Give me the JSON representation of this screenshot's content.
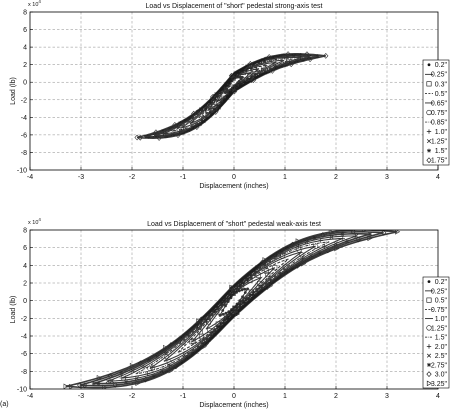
{
  "figure_label": "(a)",
  "chart_data": [
    {
      "type": "line",
      "title": "Load vs Displacement of \"short\" pedestal strong-axis test",
      "xlabel": "Displacement (inches)",
      "ylabel": "Load (lb)",
      "y_exponent_label": "x 10",
      "y_exponent_power": "4",
      "xlim": [
        -4,
        4
      ],
      "ylim": [
        -10,
        8
      ],
      "xticks": [
        "-4",
        "-3",
        "-2",
        "-1",
        "0",
        "1",
        "2",
        "3",
        "4"
      ],
      "yticks": [
        "-10",
        "-8",
        "-6",
        "-4",
        "-2",
        "0",
        "2",
        "4",
        "6",
        "8"
      ],
      "grid": true,
      "legend_position": "right",
      "series": [
        {
          "name": "0.2\"",
          "marker": "dot",
          "amp": 0.2
        },
        {
          "name": "0.25\"",
          "marker": "solid",
          "amp": 0.25
        },
        {
          "name": "0.3\"",
          "marker": "square",
          "amp": 0.3
        },
        {
          "name": "0.5\"",
          "marker": "dashed",
          "amp": 0.5
        },
        {
          "name": "0.65\"",
          "marker": "solid",
          "amp": 0.65
        },
        {
          "name": "0.75\"",
          "marker": "circle",
          "amp": 0.75
        },
        {
          "name": "0.85\"",
          "marker": "dashdot",
          "amp": 0.85
        },
        {
          "name": "1.0\"",
          "marker": "plus",
          "amp": 1.0
        },
        {
          "name": "1.25\"",
          "marker": "cross",
          "amp": 1.25
        },
        {
          "name": "1.5\"",
          "marker": "star",
          "amp": 1.5
        },
        {
          "name": "1.75\"",
          "marker": "diamond",
          "amp": 1.75
        }
      ],
      "envelope": {
        "x_range": [
          -1.9,
          1.8
        ],
        "load_at_min_disp": -6.3,
        "load_at_max_disp": 3.0,
        "slope": 2.1,
        "hysteresis_half_width": 1.2
      }
    },
    {
      "type": "line",
      "title": "Load vs Displacement of \"short\" pedestal weak-axis test",
      "xlabel": "Displacement (inches)",
      "ylabel": "Load (lb)",
      "y_exponent_label": "x 10",
      "y_exponent_power": "4",
      "xlim": [
        -4,
        4
      ],
      "ylim": [
        -10,
        8
      ],
      "xticks": [
        "-4",
        "-3",
        "-2",
        "-1",
        "0",
        "1",
        "2",
        "3",
        "4"
      ],
      "yticks": [
        "-10",
        "-8",
        "-6",
        "-4",
        "-2",
        "0",
        "2",
        "4",
        "6",
        "8"
      ],
      "grid": true,
      "legend_position": "right",
      "series": [
        {
          "name": "0.2\"",
          "marker": "dot",
          "amp": 0.2
        },
        {
          "name": "0.25\"",
          "marker": "solid",
          "amp": 0.25
        },
        {
          "name": "0.5\"",
          "marker": "square",
          "amp": 0.5
        },
        {
          "name": "0.75\"",
          "marker": "dashed",
          "amp": 0.75
        },
        {
          "name": "1.0\"",
          "marker": "solid",
          "amp": 1.0
        },
        {
          "name": "1.25\"",
          "marker": "circle",
          "amp": 1.25
        },
        {
          "name": "1.5\"",
          "marker": "dashdot",
          "amp": 1.5
        },
        {
          "name": "2.0\"",
          "marker": "plus",
          "amp": 2.0
        },
        {
          "name": "2.5\"",
          "marker": "cross",
          "amp": 2.5
        },
        {
          "name": "2.75\"",
          "marker": "star",
          "amp": 2.75
        },
        {
          "name": "3.0\"",
          "marker": "diamond",
          "amp": 3.0
        },
        {
          "name": "3.25\"",
          "marker": "triangle",
          "amp": 3.25
        }
      ],
      "envelope": {
        "x_range": [
          -3.3,
          3.2
        ],
        "load_at_min_disp": -9.7,
        "load_at_max_disp": 7.8,
        "slope": 0.55,
        "hysteresis_half_width": 2.0
      }
    }
  ]
}
